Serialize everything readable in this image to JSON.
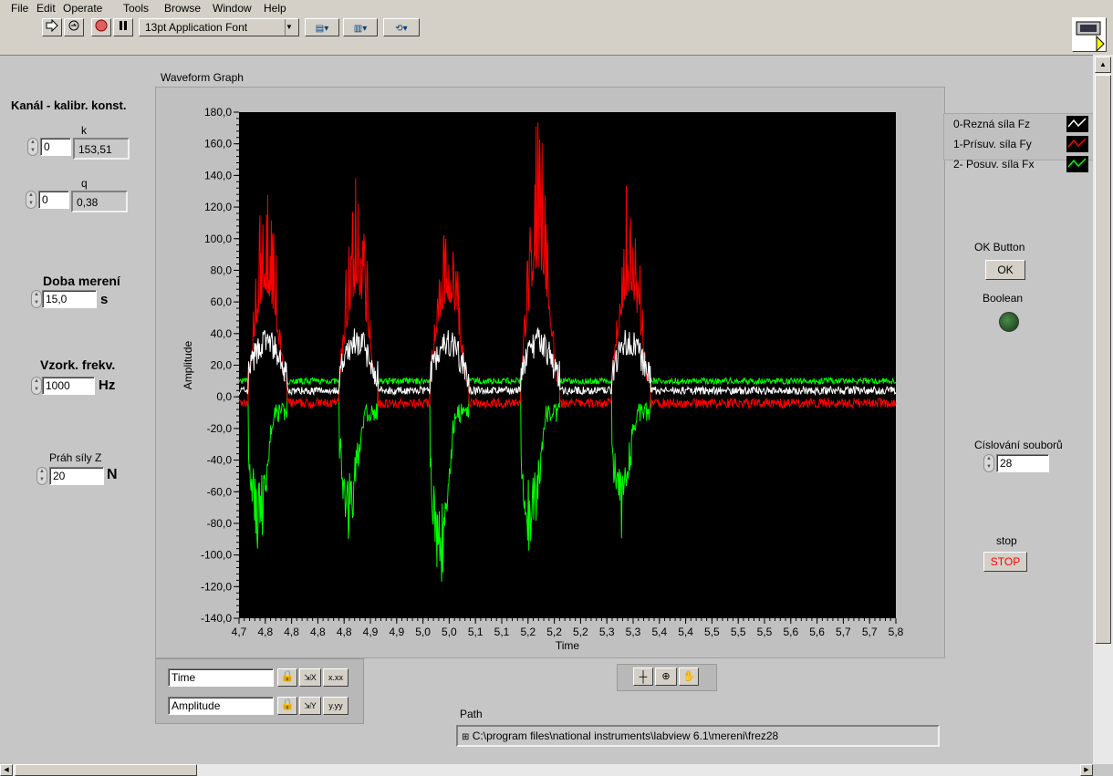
{
  "menu": [
    "File",
    "Edit",
    "Operate",
    "Tools",
    "Browse",
    "Window",
    "Help"
  ],
  "toolbar": {
    "font_select": "13pt Application Font"
  },
  "left_panel": {
    "calib_title": "Kanál - kalibr. konst.",
    "k_label": "k",
    "k_index": "0",
    "k_value": "153,51",
    "q_label": "q",
    "q_index": "0",
    "q_value": "0,38",
    "doba_label": "Doba merení",
    "doba_value": "15,0",
    "doba_unit": "s",
    "vzork_label": "Vzork. frekv.",
    "vzork_value": "1000",
    "vzork_unit": "Hz",
    "prah_label": "Práh síly Z",
    "prah_value": "20",
    "prah_unit": "N"
  },
  "graph": {
    "title": "Waveform Graph",
    "x_axis_name": "Time",
    "y_axis_name": "Amplitude"
  },
  "scale_legend": {
    "x_name": "Time",
    "y_name": "Amplitude",
    "x_format": "x.xx",
    "y_format": "y.yy"
  },
  "right_panel": {
    "ok_label": "OK Button",
    "ok_text": "OK",
    "boolean_label": "Boolean",
    "cislovani_label": "Císlování souborů",
    "cislovani_value": "28",
    "stop_label": "stop",
    "stop_text": "STOP"
  },
  "path": {
    "label": "Path",
    "value": "C:\\program files\\national instruments\\labview 6.1\\mereni\\frez28"
  },
  "colors": {
    "fz": "#ffffff",
    "fy": "#ff0000",
    "fx": "#00ff00",
    "plot_bg": "#000000",
    "stop_text": "#ff0000",
    "led": "#1e5a1e"
  },
  "chart_data": {
    "type": "line",
    "xlabel": "Time",
    "ylabel": "Amplitude",
    "xlim": [
      4.7,
      5.8
    ],
    "ylim": [
      -140,
      180
    ],
    "x_ticks": [
      "4,7",
      "4,8",
      "4,8",
      "4,8",
      "4,8",
      "4,9",
      "4,9",
      "5,0",
      "5,0",
      "5,1",
      "5,1",
      "5,2",
      "5,2",
      "5,2",
      "5,3",
      "5,3",
      "5,4",
      "5,4",
      "5,5",
      "5,5",
      "5,5",
      "5,6",
      "5,6",
      "5,7",
      "5,7",
      "5,8"
    ],
    "y_ticks": [
      "180,0",
      "160,0",
      "140,0",
      "120,0",
      "100,0",
      "80,0",
      "60,0",
      "40,0",
      "20,0",
      "0,0",
      "-20,0",
      "-40,0",
      "-60,0",
      "-80,0",
      "-100,0",
      "-120,0",
      "-140,0"
    ],
    "series": [
      {
        "name": "0-Rezná síla Fz",
        "color": "#ffffff",
        "baseline": 4,
        "burst_peak": 40
      },
      {
        "name": "1-Prísuv. síla Fy",
        "color": "#ff0000",
        "baseline": -4,
        "burst_peak": 160
      },
      {
        "name": "2- Posuv. síla Fx",
        "color": "#00ff00",
        "baseline": 10,
        "burst_min": -122
      }
    ],
    "bursts": [
      {
        "start": 4.716,
        "end": 4.781,
        "fy_peak": 124,
        "fx_min": -103
      },
      {
        "start": 4.868,
        "end": 4.933,
        "fy_peak": 124,
        "fx_min": -88
      },
      {
        "start": 5.02,
        "end": 5.085,
        "fy_peak": 113,
        "fx_min": -122
      },
      {
        "start": 5.172,
        "end": 5.237,
        "fy_peak": 160,
        "fx_min": -105
      },
      {
        "start": 5.324,
        "end": 5.389,
        "fy_peak": 123,
        "fx_min": -80
      }
    ]
  }
}
